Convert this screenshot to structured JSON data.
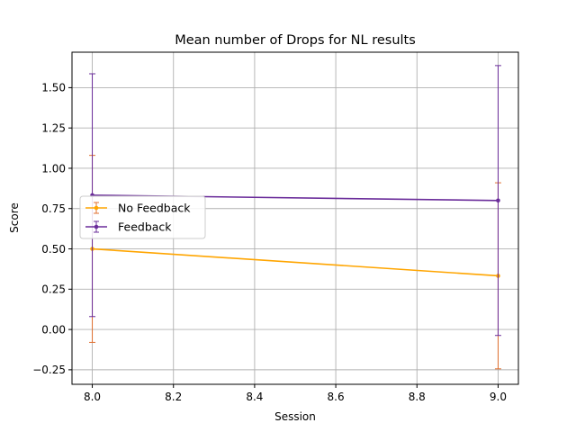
{
  "chart_data": {
    "type": "line",
    "title": "Mean number of Drops for NL results",
    "xlabel": "Session",
    "ylabel": "Score",
    "xlim": [
      7.95,
      9.05
    ],
    "ylim": [
      -0.34,
      1.72
    ],
    "grid": true,
    "legend_position": "center-left",
    "x_ticks": [
      "8.0",
      "8.2",
      "8.4",
      "8.6",
      "8.8",
      "9.0"
    ],
    "y_ticks": [
      "−0.25",
      "0.00",
      "0.25",
      "0.50",
      "0.75",
      "1.00",
      "1.25",
      "1.50"
    ],
    "series": [
      {
        "name": "No Feedback",
        "color": "#ffa500",
        "errorbar_color": "#e07030",
        "x": [
          8.0,
          9.0
        ],
        "y": [
          0.5,
          0.333
        ],
        "yerr": [
          0.58,
          0.577
        ]
      },
      {
        "name": "Feedback",
        "color": "#6a2c9a",
        "errorbar_color": "#6a2c9a",
        "x": [
          8.0,
          9.0
        ],
        "y": [
          0.833,
          0.8
        ],
        "yerr": [
          0.753,
          0.837
        ]
      }
    ]
  }
}
